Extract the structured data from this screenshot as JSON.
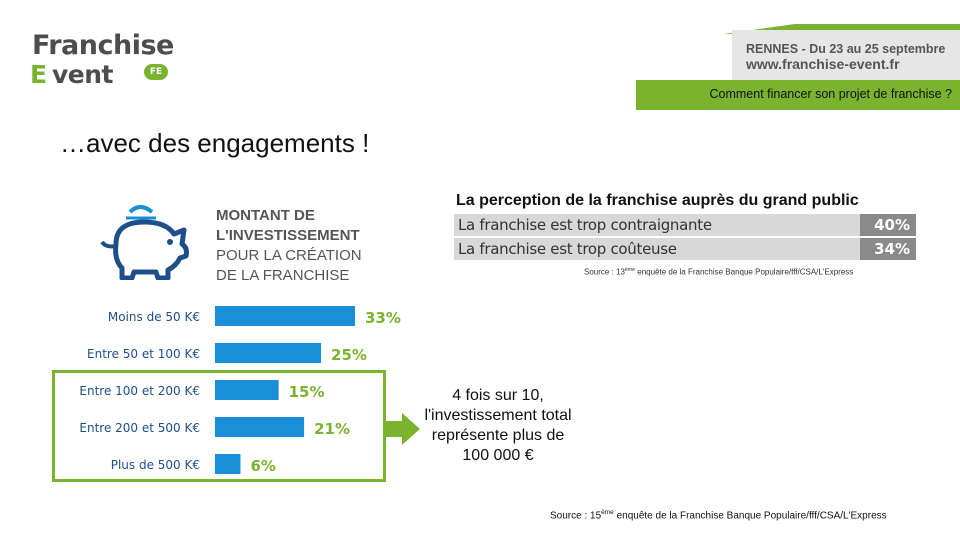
{
  "logo": {
    "line1": "Franchise",
    "line2": "vent",
    "e_letter": "E",
    "badge": "FE"
  },
  "header": {
    "event_line": "RENNES - Du 23 au 25 septembre",
    "url": "www.franchise-event.fr",
    "subtitle": "Comment financer son projet de franchise ?"
  },
  "slide": {
    "title": "…avec des engagements !"
  },
  "infographic": {
    "title_bold_1": "MONTANT DE",
    "title_bold_2": "L'INVESTISSEMENT",
    "title_light_1": "POUR LA CRÉATION",
    "title_light_2": "DE LA FRANCHISE",
    "icon": "piggy-bank-icon"
  },
  "chart_data": {
    "type": "bar",
    "orientation": "horizontal",
    "title": "MONTANT DE L'INVESTISSEMENT POUR LA CRÉATION DE LA FRANCHISE",
    "categories": [
      "Moins de 50 K€",
      "Entre 50 et 100 K€",
      "Entre 100 et 200 K€",
      "Entre 200 et 500 K€",
      "Plus de 500 K€"
    ],
    "values": [
      33,
      25,
      15,
      21,
      6
    ],
    "value_labels": [
      "33%",
      "25%",
      "15%",
      "21%",
      "6%"
    ],
    "unit": "%",
    "xlim": [
      0,
      35
    ],
    "bar_color": "#1a8fd8",
    "label_color": "#7ab32e",
    "grid": false
  },
  "callout": {
    "text": "4 fois sur 10, l'investissement total représente plus de 100 000 €"
  },
  "perception": {
    "title": "La perception de la franchise auprès du grand public",
    "rows": [
      {
        "label": "La franchise est trop contraignante",
        "value": "40%"
      },
      {
        "label": "La franchise est trop coûteuse",
        "value": "34%"
      }
    ],
    "source_prefix": "Source : 13",
    "source_sup": "ème",
    "source_suffix": " enquête de la Franchise Banque Populaire/fff/CSA/L'Express"
  },
  "footer": {
    "source_prefix": "Source : 15",
    "source_sup": "ème",
    "source_suffix": " enquête de la Franchise Banque Populaire/fff/CSA/L'Express"
  },
  "colors": {
    "green": "#7ab32e",
    "blue": "#1a8fd8",
    "dark_blue": "#1f4f8a",
    "grey": "#8a8a8a"
  }
}
